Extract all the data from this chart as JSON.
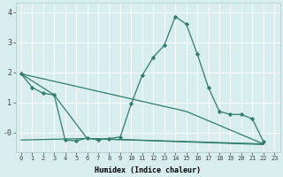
{
  "xlabel": "Humidex (Indice chaleur)",
  "bg_color": "#d8eeee",
  "grid_color": "#ffffff",
  "line_color": "#2e7d6e",
  "xlim": [
    -0.5,
    23.5
  ],
  "ylim": [
    -0.65,
    4.3
  ],
  "yticks": [
    0,
    1,
    2,
    3,
    4
  ],
  "ytick_labels": [
    "-0",
    "1",
    "2",
    "3",
    "4"
  ],
  "line1_x": [
    0,
    1,
    2,
    3,
    4,
    5,
    6,
    7,
    8,
    9,
    10,
    11,
    12,
    13,
    14,
    15,
    16,
    17,
    18,
    19,
    20,
    21,
    22
  ],
  "line1_y": [
    1.95,
    1.5,
    1.3,
    1.25,
    -0.25,
    -0.28,
    -0.18,
    -0.25,
    -0.2,
    -0.15,
    0.95,
    1.9,
    2.5,
    2.9,
    3.85,
    3.6,
    2.6,
    1.5,
    0.7,
    0.6,
    0.6,
    0.45,
    -0.3
  ],
  "line2_x": [
    0,
    3,
    6,
    22
  ],
  "line2_y": [
    1.95,
    1.25,
    -0.2,
    -0.4
  ],
  "line3_x": [
    0,
    6,
    22
  ],
  "line3_y": [
    -0.25,
    -0.2,
    -0.38
  ],
  "line4_x": [
    0,
    15,
    22
  ],
  "line4_y": [
    1.95,
    0.7,
    -0.38
  ]
}
